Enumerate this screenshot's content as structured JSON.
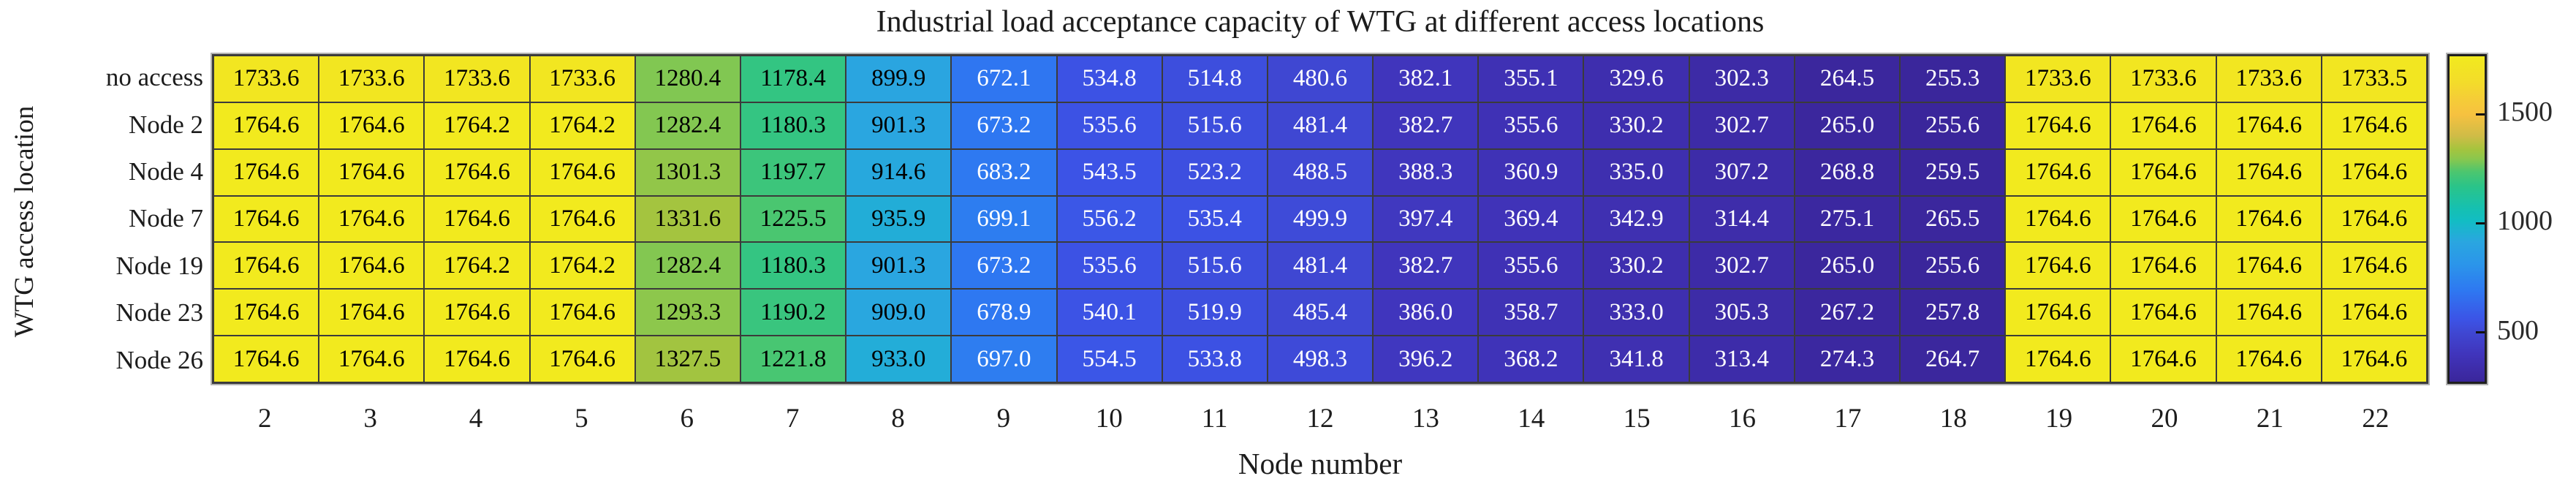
{
  "chart_data": {
    "type": "heatmap",
    "title": "Industrial load acceptance capacity of WTG at different access locations",
    "xlabel": "Node number",
    "ylabel": "WTG access location",
    "row_labels": [
      "no access",
      "Node 2",
      "Node 4",
      "Node 7",
      "Node 19",
      "Node 23",
      "Node 26"
    ],
    "col_labels": [
      "2",
      "3",
      "4",
      "5",
      "6",
      "7",
      "8",
      "9",
      "10",
      "11",
      "12",
      "13",
      "14",
      "15",
      "16",
      "17",
      "18",
      "19",
      "20",
      "21",
      "22"
    ],
    "matrix": [
      [
        1733.6,
        1733.6,
        1733.6,
        1733.6,
        1280.4,
        1178.4,
        899.9,
        672.1,
        534.8,
        514.8,
        480.6,
        382.1,
        355.1,
        329.6,
        302.3,
        264.5,
        255.3,
        1733.6,
        1733.6,
        1733.6,
        1733.5
      ],
      [
        1764.6,
        1764.6,
        1764.2,
        1764.2,
        1282.4,
        1180.3,
        901.3,
        673.2,
        535.6,
        515.6,
        481.4,
        382.7,
        355.6,
        330.2,
        302.7,
        265.0,
        255.6,
        1764.6,
        1764.6,
        1764.6,
        1764.6
      ],
      [
        1764.6,
        1764.6,
        1764.6,
        1764.6,
        1301.3,
        1197.7,
        914.6,
        683.2,
        543.5,
        523.2,
        488.5,
        388.3,
        360.9,
        335.0,
        307.2,
        268.8,
        259.5,
        1764.6,
        1764.6,
        1764.6,
        1764.6
      ],
      [
        1764.6,
        1764.6,
        1764.6,
        1764.6,
        1331.6,
        1225.5,
        935.9,
        699.1,
        556.2,
        535.4,
        499.9,
        397.4,
        369.4,
        342.9,
        314.4,
        275.1,
        265.5,
        1764.6,
        1764.6,
        1764.6,
        1764.6
      ],
      [
        1764.6,
        1764.6,
        1764.2,
        1764.2,
        1282.4,
        1180.3,
        901.3,
        673.2,
        535.6,
        515.6,
        481.4,
        382.7,
        355.6,
        330.2,
        302.7,
        265.0,
        255.6,
        1764.6,
        1764.6,
        1764.6,
        1764.6
      ],
      [
        1764.6,
        1764.6,
        1764.6,
        1764.6,
        1293.3,
        1190.2,
        909.0,
        678.9,
        540.1,
        519.9,
        485.4,
        386.0,
        358.7,
        333.0,
        305.3,
        267.2,
        257.8,
        1764.6,
        1764.6,
        1764.6,
        1764.6
      ],
      [
        1764.6,
        1764.6,
        1764.6,
        1764.6,
        1327.5,
        1221.8,
        933.0,
        697.0,
        554.5,
        533.8,
        498.3,
        396.2,
        368.2,
        341.8,
        313.4,
        274.3,
        264.7,
        1764.6,
        1764.6,
        1764.6,
        1764.6
      ]
    ],
    "value_format_decimals": 1,
    "vmin": 255.3,
    "vmax": 1764.6,
    "colorbar_ticks": [
      1500,
      1000,
      500
    ],
    "legend_position": "right-colorbar",
    "grid": "on",
    "colors": {
      "grid_line": "#3b3b3b",
      "cell_text_light": "#ffffff",
      "cell_text_dark": "#000000",
      "background": "#ffffff"
    },
    "colormap_stops": [
      [
        0.0,
        "#3a269b"
      ],
      [
        0.03,
        "#3d2ba6"
      ],
      [
        0.065,
        "#3f31b4"
      ],
      [
        0.085,
        "#4035bc"
      ],
      [
        0.15,
        "#3f47d2"
      ],
      [
        0.19,
        "#3c53e6"
      ],
      [
        0.28,
        "#2e78f1"
      ],
      [
        0.36,
        "#2b95ea"
      ],
      [
        0.43,
        "#2aa6e0"
      ],
      [
        0.495,
        "#12bdc3"
      ],
      [
        0.53,
        "#15c0b2"
      ],
      [
        0.6,
        "#2ac489"
      ],
      [
        0.645,
        "#4cc66f"
      ],
      [
        0.685,
        "#8ac74d"
      ],
      [
        0.715,
        "#a6c43e"
      ],
      [
        0.755,
        "#cfbc47"
      ],
      [
        0.82,
        "#f6c140"
      ],
      [
        0.87,
        "#f5cd37"
      ],
      [
        0.92,
        "#f3dc2a"
      ],
      [
        1.0,
        "#f2ea1e"
      ]
    ]
  }
}
